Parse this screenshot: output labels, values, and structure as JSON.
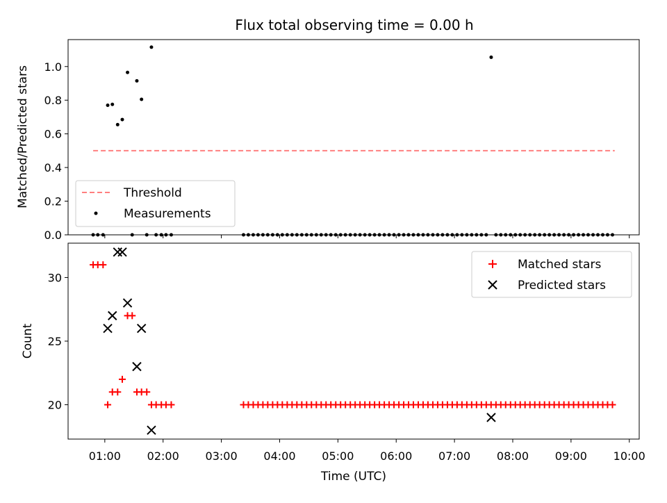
{
  "chart_data": [
    {
      "type": "scatter",
      "title": "Flux total observing time = 0.00 h",
      "ylabel": "Matched/Predicted stars",
      "xlabel": "",
      "ylim": [
        0,
        1.16
      ],
      "yticks": [
        0.0,
        0.2,
        0.4,
        0.6,
        0.8,
        1.0
      ],
      "ytick_labels": [
        "0.0",
        "0.2",
        "0.4",
        "0.6",
        "0.8",
        "1.0"
      ],
      "legend": {
        "placement": "lower-left",
        "threshold_label": "Threshold",
        "measurements_label": "Measurements"
      },
      "threshold": {
        "value": 0.5,
        "x_start": 0.8,
        "x_end": 9.75,
        "color": "#ff7f7f"
      },
      "measurements": [
        [
          1.05,
          0.77
        ],
        [
          1.13,
          0.775
        ],
        [
          1.22,
          0.655
        ],
        [
          1.3,
          0.685
        ],
        [
          1.39,
          0.965
        ],
        [
          1.55,
          0.915
        ],
        [
          1.63,
          0.805
        ],
        [
          1.8,
          1.115
        ],
        [
          7.63,
          1.055
        ],
        [
          0.8,
          0.0
        ],
        [
          0.88,
          0.0
        ],
        [
          0.97,
          0.0
        ],
        [
          1.47,
          0.0
        ],
        [
          1.72,
          0.0
        ],
        [
          1.88,
          0.0
        ],
        [
          1.97,
          0.0
        ],
        [
          2.05,
          0.0
        ],
        [
          2.14,
          0.0
        ]
      ],
      "zero_run": {
        "start": 3.38,
        "end": 9.75,
        "step": 0.0833,
        "skip": [
          7.63
        ],
        "value": 0.0
      }
    },
    {
      "type": "scatter",
      "ylabel": "Count",
      "xlabel": "Time (UTC)",
      "ylim": [
        17.3,
        32.7
      ],
      "yticks": [
        20,
        25,
        30
      ],
      "ytick_labels": [
        "20",
        "25",
        "30"
      ],
      "xlim": [
        0.37,
        10.17
      ],
      "xticks": [
        1,
        2,
        3,
        4,
        5,
        6,
        7,
        8,
        9,
        10
      ],
      "xtick_labels": [
        "01:00",
        "02:00",
        "03:00",
        "04:00",
        "05:00",
        "06:00",
        "07:00",
        "08:00",
        "09:00",
        "10:00"
      ],
      "legend": {
        "placement": "top-right",
        "matched_label": "Matched stars",
        "predicted_label": "Predicted stars"
      },
      "matched_color": "#ff0000",
      "predicted_color": "#000000",
      "matched": [
        [
          0.8,
          31
        ],
        [
          0.88,
          31
        ],
        [
          0.97,
          31
        ],
        [
          1.05,
          20
        ],
        [
          1.13,
          21
        ],
        [
          1.22,
          21
        ],
        [
          1.3,
          22
        ],
        [
          1.39,
          27
        ],
        [
          1.47,
          27
        ],
        [
          1.55,
          21
        ],
        [
          1.63,
          21
        ],
        [
          1.72,
          21
        ],
        [
          1.8,
          20
        ],
        [
          1.88,
          20
        ],
        [
          1.97,
          20
        ],
        [
          2.05,
          20
        ],
        [
          2.14,
          20
        ]
      ],
      "matched_run": {
        "start": 3.38,
        "end": 9.75,
        "step": 0.0833,
        "value": 20
      },
      "predicted": [
        [
          1.05,
          26
        ],
        [
          1.13,
          27
        ],
        [
          1.22,
          32
        ],
        [
          1.3,
          32
        ],
        [
          1.39,
          28
        ],
        [
          1.55,
          23
        ],
        [
          1.63,
          26
        ],
        [
          1.8,
          18
        ],
        [
          7.63,
          19
        ]
      ]
    }
  ]
}
